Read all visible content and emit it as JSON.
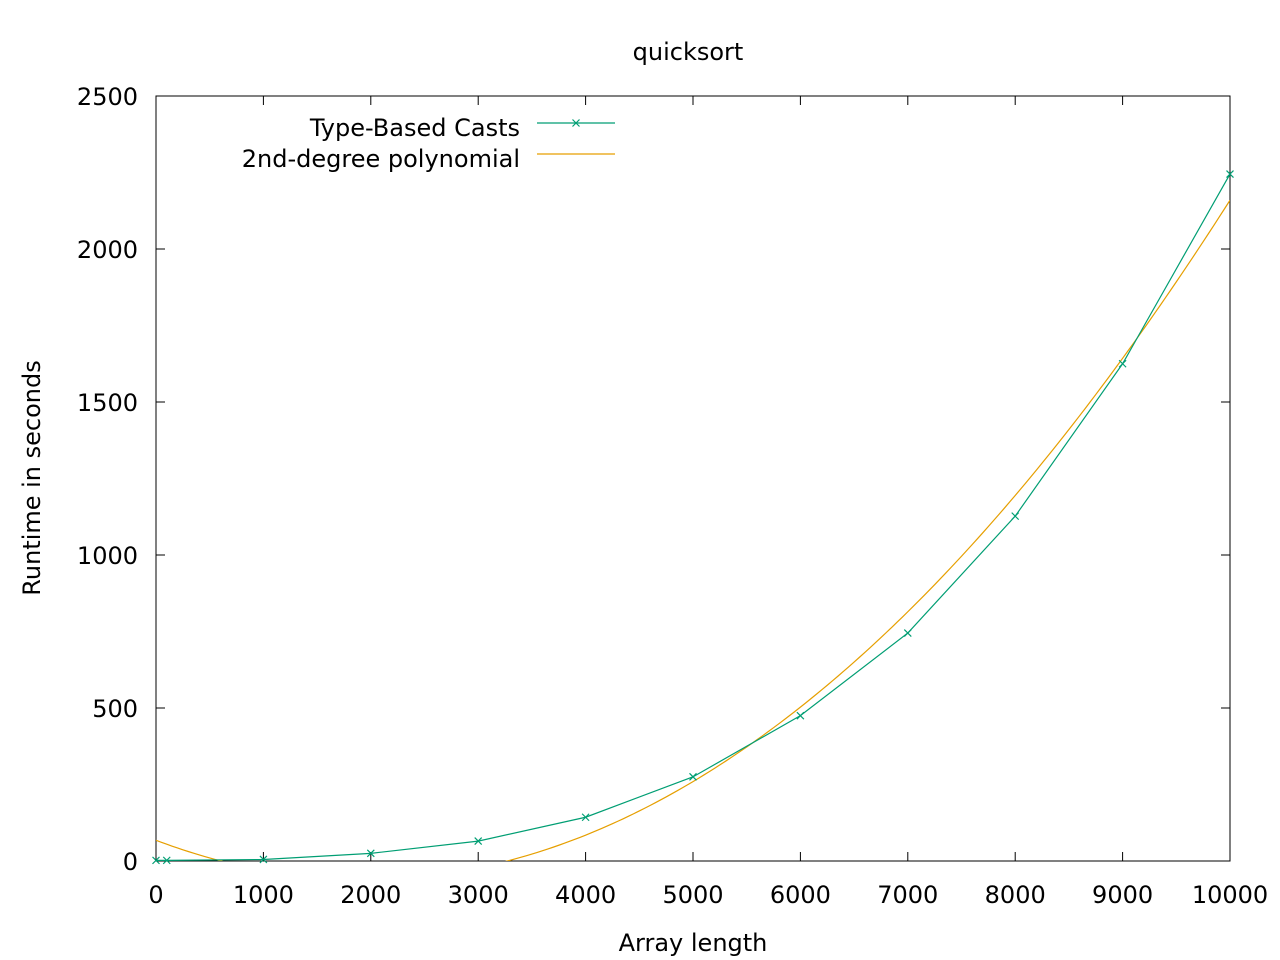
{
  "chart_data": {
    "type": "line",
    "title": "quicksort",
    "xlabel": "Array length",
    "ylabel": "Runtime in seconds",
    "xlim": [
      0,
      10000
    ],
    "ylim": [
      0,
      2500
    ],
    "x_ticks": [
      0,
      1000,
      2000,
      3000,
      4000,
      5000,
      6000,
      7000,
      8000,
      9000,
      10000
    ],
    "y_ticks": [
      0,
      500,
      1000,
      1500,
      2000,
      2500
    ],
    "x_tick_labels": [
      "0",
      "1000",
      "2000",
      "3000",
      "4000",
      "5000",
      "6000",
      "7000",
      "8000",
      "9000",
      "10000"
    ],
    "y_tick_labels": [
      "0",
      "500",
      "1000",
      "1500",
      "2000",
      "2500"
    ],
    "grid": false,
    "legend_position": "top-left",
    "series": [
      {
        "name": "Type-Based Casts",
        "color": "#009e73",
        "marker": "x",
        "x": [
          0,
          100,
          1000,
          2000,
          3000,
          4000,
          5000,
          6000,
          7000,
          8000,
          9000,
          10000
        ],
        "y": [
          2,
          2,
          5,
          25,
          65,
          143,
          275,
          475,
          745,
          1127,
          1625,
          2245
        ]
      },
      {
        "name": "2nd-degree polynomial",
        "color": "#e69f00",
        "function": "quadratic fit",
        "coefficients": {
          "a": 3.416e-05,
          "b": -0.13243,
          "c": 67.7
        },
        "x_range": [
          0,
          10000
        ]
      }
    ]
  }
}
